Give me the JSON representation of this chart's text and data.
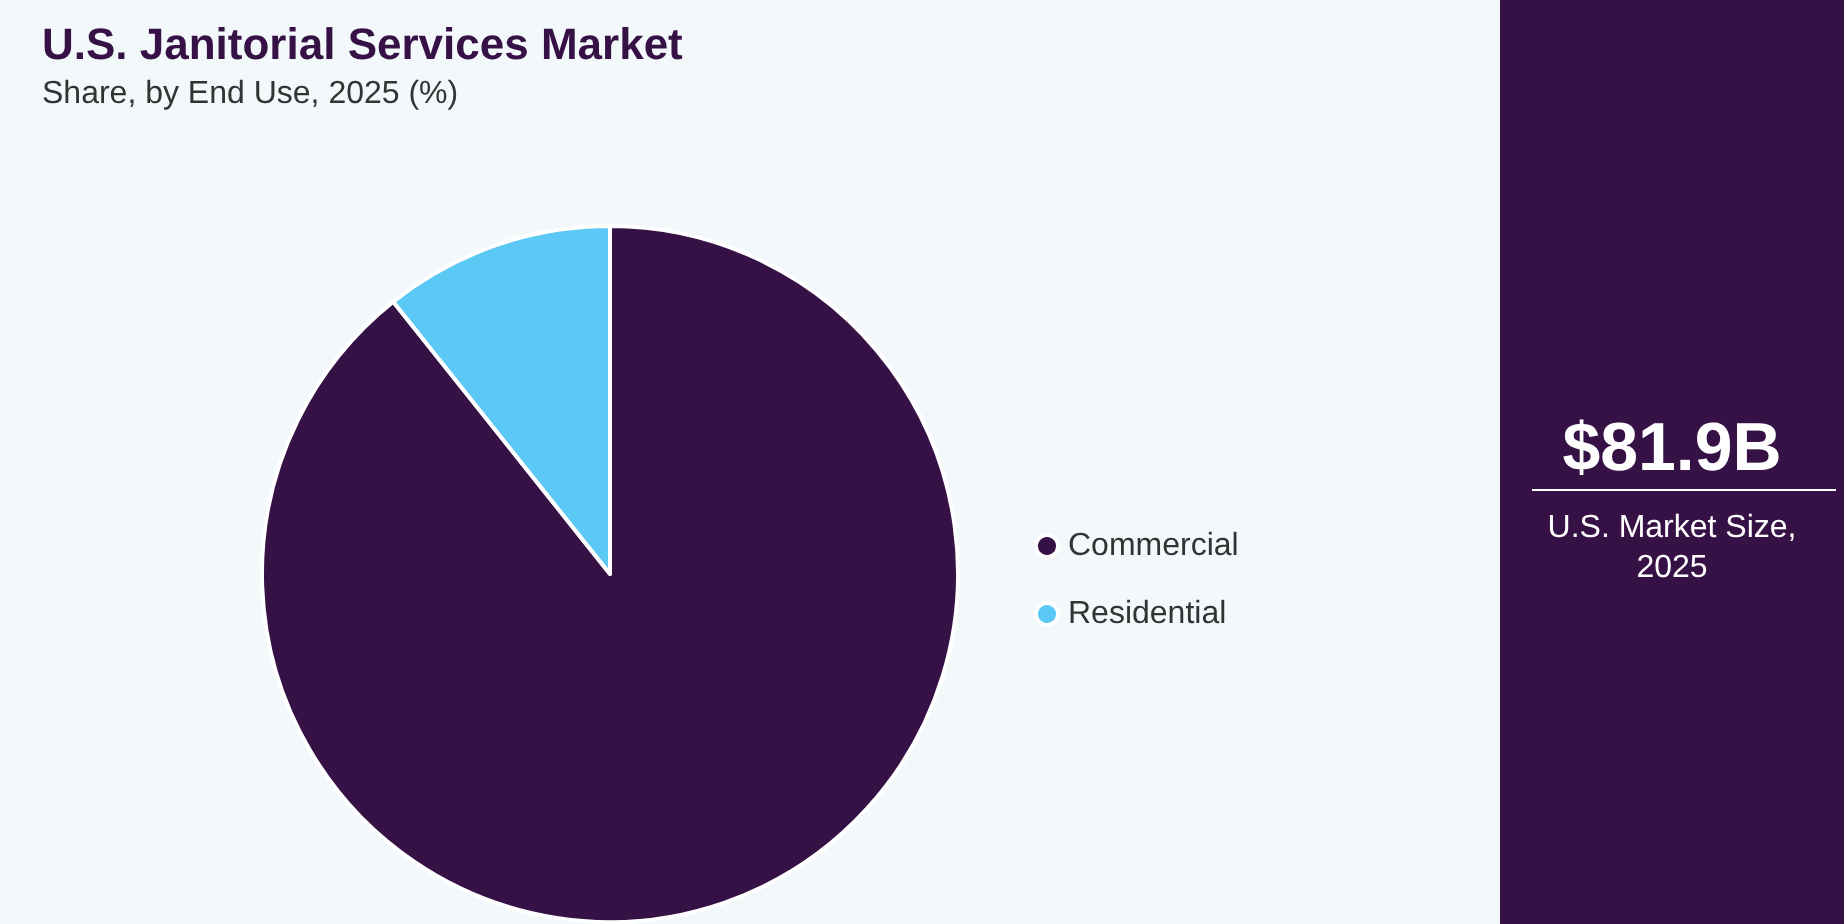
{
  "chart_data": {
    "type": "pie",
    "title": "U.S. Janitorial Services Market",
    "subtitle": "Share, by End Use, 2025 (%)",
    "categories": [
      "Commercial",
      "Residential"
    ],
    "values": [
      89.3,
      10.7
    ],
    "colors": [
      "#361145",
      "#5bc8f5"
    ],
    "legend": "right",
    "annotations": [
      "$81.9B",
      "U.S. Market Size,\n2025"
    ]
  }
}
